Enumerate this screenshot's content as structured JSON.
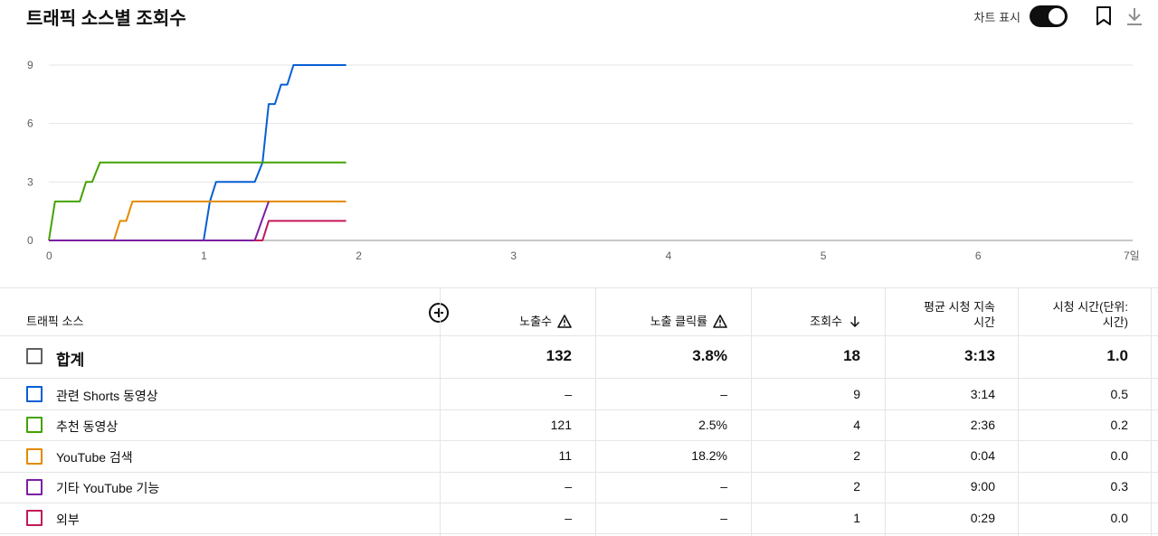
{
  "title": "트래픽 소스별 조회수",
  "toolbar": {
    "toggle_label": "차트 표시",
    "toggle_on": true,
    "icons": [
      "bookmark-icon",
      "download-icon"
    ]
  },
  "chart_data": {
    "type": "line",
    "x_ticks": [
      "0",
      "1",
      "2",
      "3",
      "4",
      "5",
      "6",
      "7일"
    ],
    "y_ticks": [
      "0",
      "3",
      "6",
      "9"
    ],
    "xlim": [
      0,
      7
    ],
    "ylim": [
      0,
      9
    ],
    "grid": true,
    "series": [
      {
        "name": "관련 Shorts 동영상",
        "color": "#065fd4",
        "x": [
          0,
          1.0,
          1.04,
          1.08,
          1.33,
          1.38,
          1.42,
          1.46,
          1.5,
          1.54,
          1.58,
          1.62,
          1.92
        ],
        "y": [
          0,
          0,
          2,
          3,
          3,
          4,
          7,
          7,
          8,
          8,
          9,
          9,
          9
        ]
      },
      {
        "name": "추천 동영상",
        "color": "#43a200",
        "x": [
          0,
          0.04,
          0.2,
          0.24,
          0.28,
          0.33,
          1.92
        ],
        "y": [
          0,
          2,
          2,
          3,
          3,
          4,
          4
        ]
      },
      {
        "name": "YouTube 검색",
        "color": "#e38a00",
        "x": [
          0,
          0.42,
          0.46,
          0.5,
          0.54,
          1.92
        ],
        "y": [
          0,
          0,
          1,
          1,
          2,
          2
        ]
      },
      {
        "name": "기타 YouTube 기능",
        "color": "#7b1fa2",
        "x": [
          0,
          1.33,
          1.42
        ],
        "y": [
          0,
          0,
          2
        ]
      },
      {
        "name": "외부",
        "color": "#c2185b",
        "x": [
          1.33,
          1.38,
          1.42,
          1.92
        ],
        "y": [
          0,
          0,
          1,
          1
        ]
      }
    ]
  },
  "table": {
    "headers": {
      "source": "트래픽 소스",
      "impressions": "노출수",
      "ctr": "노출 클릭률",
      "views": "조회수",
      "avg_duration_l1": "평균 시청 지속",
      "avg_duration_l2": "시간",
      "watch_time_l1": "시청 시간(단위:",
      "watch_time_l2": "시간)"
    },
    "total": {
      "name": "합계",
      "impressions": "132",
      "ctr": "3.8%",
      "views": "18",
      "avg": "3:13",
      "watch": "1.0"
    },
    "rows": [
      {
        "name": "관련 Shorts 동영상",
        "color": "#065fd4",
        "impressions": "–",
        "ctr": "–",
        "views": "9",
        "avg": "3:14",
        "watch": "0.5"
      },
      {
        "name": "추천 동영상",
        "color": "#43a200",
        "impressions": "121",
        "ctr": "2.5%",
        "views": "4",
        "avg": "2:36",
        "watch": "0.2"
      },
      {
        "name": "YouTube 검색",
        "color": "#e38a00",
        "impressions": "11",
        "ctr": "18.2%",
        "views": "2",
        "avg": "0:04",
        "watch": "0.0"
      },
      {
        "name": "기타 YouTube 기능",
        "color": "#7b1fa2",
        "impressions": "–",
        "ctr": "–",
        "views": "2",
        "avg": "9:00",
        "watch": "0.3"
      },
      {
        "name": "외부",
        "color": "#c2185b",
        "impressions": "–",
        "ctr": "–",
        "views": "1",
        "avg": "0:29",
        "watch": "0.0"
      }
    ]
  }
}
